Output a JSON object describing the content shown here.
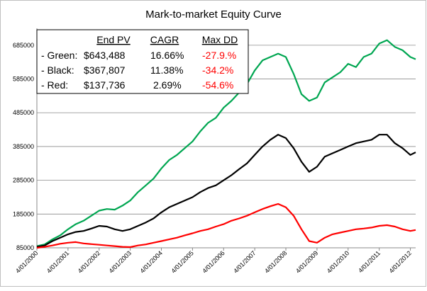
{
  "chart_data": {
    "type": "line",
    "title": "Mark-to-market Equity Curve",
    "xlabel": "",
    "ylabel": "",
    "ylim": [
      85000,
      735000
    ],
    "y_ticks": [
      "85000",
      "185000",
      "285000",
      "385000",
      "485000",
      "585000",
      "685000"
    ],
    "y_tick_values": [
      85000,
      185000,
      285000,
      385000,
      485000,
      585000,
      685000
    ],
    "x_ticks": [
      "4/01/2000",
      "4/01/2001",
      "4/01/2002",
      "4/01/2003",
      "4/01/2004",
      "4/01/2005",
      "4/01/2006",
      "4/01/2007",
      "4/01/2008",
      "4/01/2009",
      "4/01/2010",
      "4/01/2011",
      "4/01/2012"
    ],
    "xlim": [
      "4/01/2000",
      "6/01/2012"
    ],
    "grid": "horizontal",
    "stats_table": {
      "headers": [
        "End PV",
        "CAGR",
        "Max DD"
      ],
      "rows": [
        {
          "label": "- Green:",
          "end_pv": "$643,488",
          "cagr": "16.66%",
          "max_dd": "-27.9.%"
        },
        {
          "label": "- Black:",
          "end_pv": "$367,807",
          "cagr": "11.38%",
          "max_dd": "-34.2%"
        },
        {
          "label": "- Red:",
          "end_pv": "$137,736",
          "cagr": "2.69%",
          "max_dd": "-54.6%"
        }
      ]
    },
    "series": [
      {
        "color": "#00a651",
        "x": [
          2000.25,
          2000.5,
          2000.75,
          2001.0,
          2001.25,
          2001.5,
          2001.75,
          2002.0,
          2002.25,
          2002.5,
          2002.75,
          2003.0,
          2003.25,
          2003.5,
          2003.75,
          2004.0,
          2004.25,
          2004.5,
          2004.75,
          2005.0,
          2005.25,
          2005.5,
          2005.75,
          2006.0,
          2006.25,
          2006.5,
          2006.75,
          2007.0,
          2007.25,
          2007.5,
          2007.75,
          2008.0,
          2008.25,
          2008.5,
          2008.75,
          2009.0,
          2009.25,
          2009.5,
          2009.75,
          2010.0,
          2010.25,
          2010.5,
          2010.75,
          2011.0,
          2011.25,
          2011.5,
          2011.75,
          2012.0,
          2012.25,
          2012.42
        ],
        "y": [
          90000,
          95000,
          110000,
          122000,
          140000,
          155000,
          165000,
          180000,
          195000,
          200000,
          198000,
          210000,
          225000,
          250000,
          270000,
          290000,
          320000,
          345000,
          360000,
          380000,
          400000,
          430000,
          455000,
          470000,
          500000,
          520000,
          545000,
          570000,
          610000,
          640000,
          650000,
          660000,
          650000,
          600000,
          540000,
          520000,
          530000,
          575000,
          590000,
          605000,
          630000,
          620000,
          650000,
          660000,
          690000,
          700000,
          680000,
          670000,
          650000,
          643488
        ]
      },
      {
        "color": "#000000",
        "x": [
          2000.25,
          2000.5,
          2000.75,
          2001.0,
          2001.25,
          2001.5,
          2001.75,
          2002.0,
          2002.25,
          2002.5,
          2002.75,
          2003.0,
          2003.25,
          2003.5,
          2003.75,
          2004.0,
          2004.25,
          2004.5,
          2004.75,
          2005.0,
          2005.25,
          2005.5,
          2005.75,
          2006.0,
          2006.25,
          2006.5,
          2006.75,
          2007.0,
          2007.25,
          2007.5,
          2007.75,
          2008.0,
          2008.25,
          2008.5,
          2008.75,
          2009.0,
          2009.25,
          2009.5,
          2009.75,
          2010.0,
          2010.25,
          2010.5,
          2010.75,
          2011.0,
          2011.25,
          2011.5,
          2011.75,
          2012.0,
          2012.25,
          2012.42
        ],
        "y": [
          88000,
          92000,
          105000,
          115000,
          125000,
          132000,
          135000,
          142000,
          150000,
          148000,
          140000,
          135000,
          140000,
          150000,
          160000,
          172000,
          190000,
          205000,
          215000,
          225000,
          235000,
          250000,
          262000,
          270000,
          285000,
          300000,
          318000,
          335000,
          360000,
          385000,
          405000,
          420000,
          410000,
          380000,
          340000,
          310000,
          325000,
          355000,
          365000,
          375000,
          385000,
          395000,
          400000,
          405000,
          420000,
          420000,
          395000,
          380000,
          360000,
          367807
        ]
      },
      {
        "color": "#ff0000",
        "x": [
          2000.25,
          2000.5,
          2000.75,
          2001.0,
          2001.25,
          2001.5,
          2001.75,
          2002.0,
          2002.25,
          2002.5,
          2002.75,
          2003.0,
          2003.25,
          2003.5,
          2003.75,
          2004.0,
          2004.25,
          2004.5,
          2004.75,
          2005.0,
          2005.25,
          2005.5,
          2005.75,
          2006.0,
          2006.25,
          2006.5,
          2006.75,
          2007.0,
          2007.25,
          2007.5,
          2007.75,
          2008.0,
          2008.25,
          2008.5,
          2008.75,
          2009.0,
          2009.25,
          2009.5,
          2009.75,
          2010.0,
          2010.25,
          2010.5,
          2010.75,
          2011.0,
          2011.25,
          2011.5,
          2011.75,
          2012.0,
          2012.25,
          2012.42
        ],
        "y": [
          85000,
          88000,
          92000,
          97000,
          100000,
          102000,
          98000,
          96000,
          94000,
          92000,
          90000,
          88000,
          87000,
          92000,
          95000,
          100000,
          105000,
          110000,
          115000,
          122000,
          128000,
          135000,
          140000,
          148000,
          155000,
          165000,
          172000,
          180000,
          190000,
          200000,
          208000,
          215000,
          205000,
          180000,
          140000,
          105000,
          100000,
          115000,
          125000,
          130000,
          135000,
          140000,
          142000,
          145000,
          150000,
          152000,
          148000,
          140000,
          135000,
          137736
        ]
      }
    ]
  }
}
